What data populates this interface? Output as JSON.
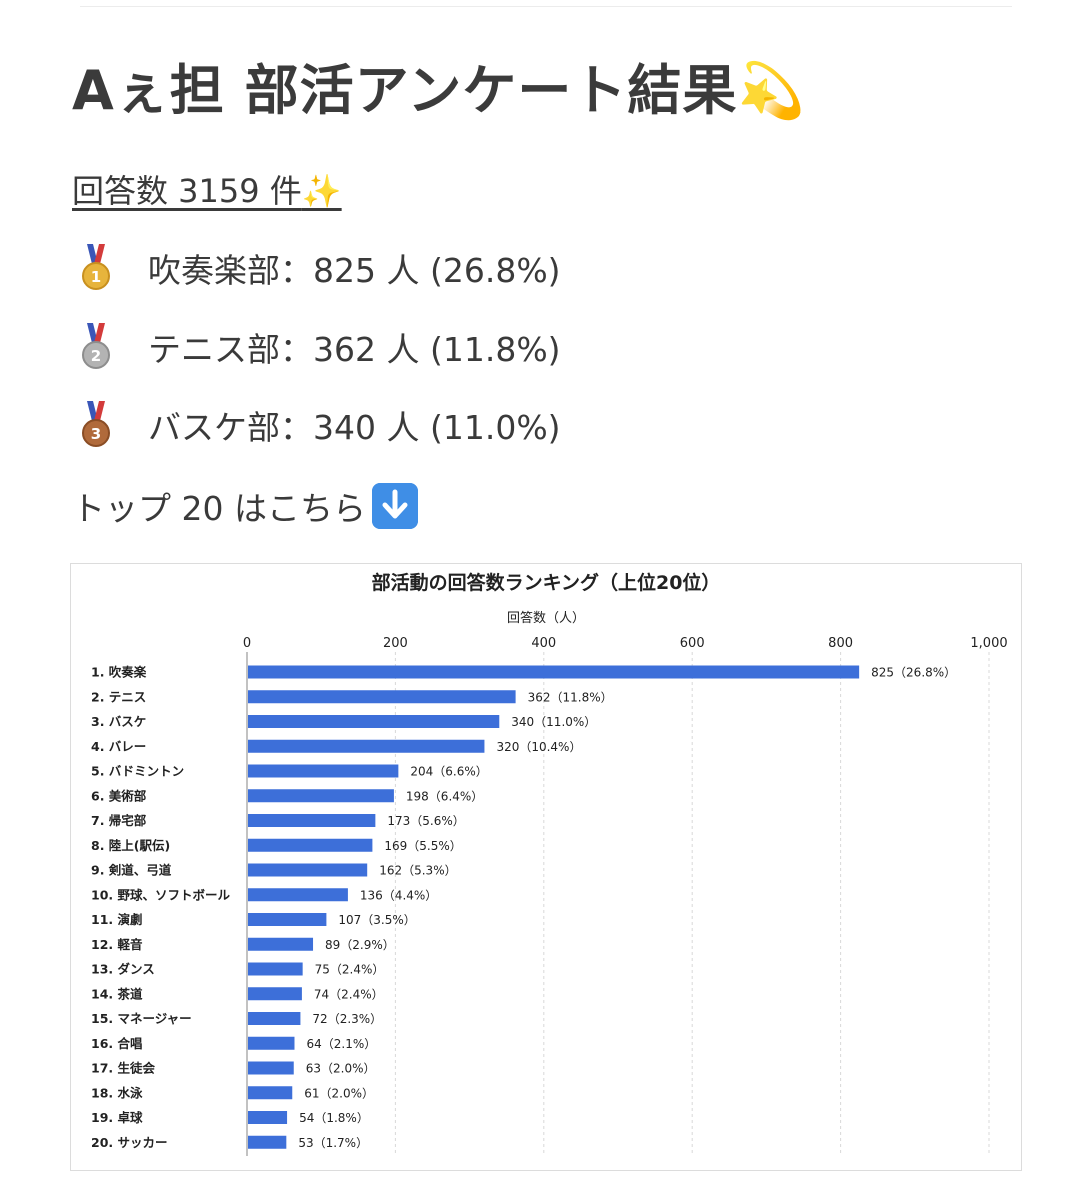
{
  "title": "Aぇ担 部活アンケート結果",
  "title_emoji": "💫",
  "response_count": "回答数 3159 件",
  "response_emoji": "✨",
  "top3": [
    {
      "medal": "gold-medal-icon",
      "color": "#e7b43c",
      "number": "1",
      "text": "吹奏楽部：825 人 (26.8%)"
    },
    {
      "medal": "silver-medal-icon",
      "color": "#b3b3b3",
      "number": "2",
      "text": "テニス部：362 人 (11.8%)"
    },
    {
      "medal": "bronze-medal-icon",
      "color": "#b06a3b",
      "number": "3",
      "text": "バスケ部：340 人 (11.0%)"
    }
  ],
  "top20_text": "トップ 20 はこちら",
  "top20_icon": "down-arrow-icon",
  "chart_data": {
    "type": "bar",
    "orientation": "horizontal",
    "title": "部活動の回答数ランキング（上位20位）",
    "xlabel": "回答数（人）",
    "xlim": [
      0,
      1000
    ],
    "xticks": [
      "0",
      "200",
      "400",
      "600",
      "800",
      "1,000"
    ],
    "xtick_values": [
      0,
      200,
      400,
      600,
      800,
      1000
    ],
    "grid": true,
    "bar_color": "#3d6fd9",
    "categories": [
      "1. 吹奏楽",
      "2. テニス",
      "3. バスケ",
      "4. バレー",
      "5. バドミントン",
      "6. 美術部",
      "7. 帰宅部",
      "8. 陸上(駅伝)",
      "9. 剣道、弓道",
      "10. 野球、ソフトボール",
      "11. 演劇",
      "12. 軽音",
      "13. ダンス",
      "14. 茶道",
      "15. マネージャー",
      "16. 合唱",
      "17. 生徒会",
      "18. 水泳",
      "19. 卓球",
      "20. サッカー"
    ],
    "values": [
      825,
      362,
      340,
      320,
      204,
      198,
      173,
      169,
      162,
      136,
      107,
      89,
      75,
      74,
      72,
      64,
      63,
      61,
      54,
      53
    ],
    "data_labels": [
      "825（26.8%）",
      "362（11.8%）",
      "340（11.0%）",
      "320（10.4%）",
      "204（6.6%）",
      "198（6.4%）",
      "173（5.6%）",
      "169（5.5%）",
      "162（5.3%）",
      "136（4.4%）",
      "107（3.5%）",
      "89（2.9%）",
      "75（2.4%）",
      "74（2.4%）",
      "72（2.3%）",
      "64（2.1%）",
      "63（2.0%）",
      "61（2.0%）",
      "54（1.8%）",
      "53（1.7%）"
    ]
  }
}
